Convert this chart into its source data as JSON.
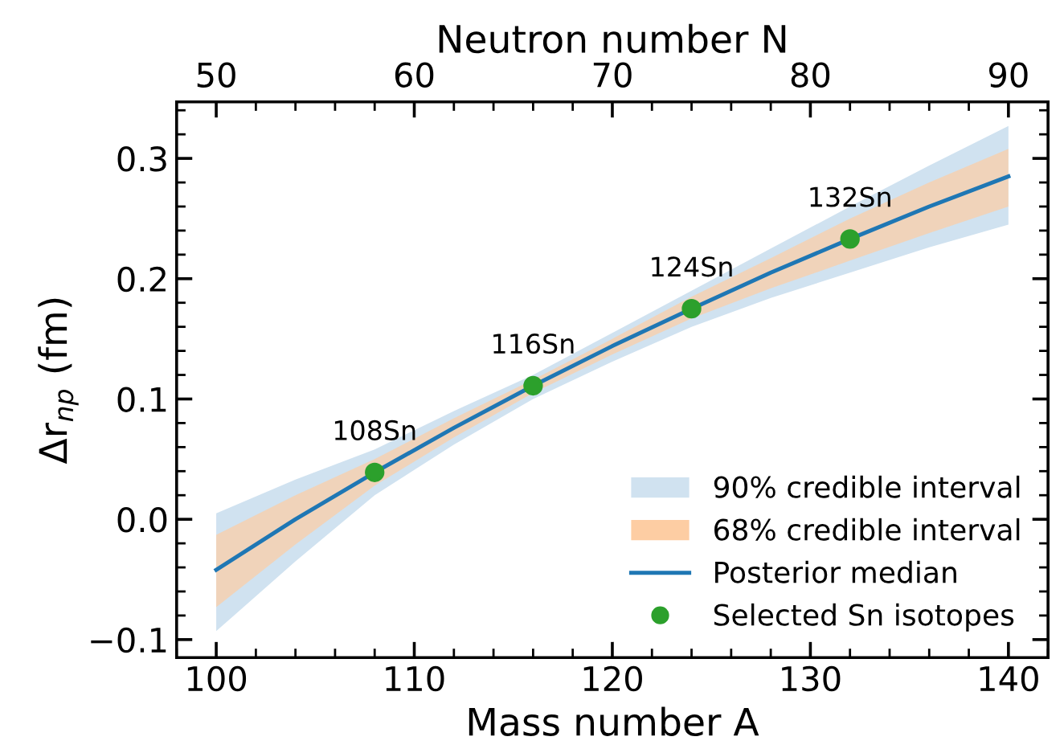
{
  "chart_data": {
    "type": "line",
    "xlabel": "Mass number A",
    "ylabel": "Δr$_{np}$ (fm)",
    "x2label": "Neutron number N",
    "xlim": [
      98,
      142
    ],
    "xticks": [
      100,
      110,
      120,
      130,
      140
    ],
    "x2lim": [
      48,
      92
    ],
    "x2ticks": [
      50,
      60,
      70,
      80,
      90
    ],
    "ylim": [
      -0.115,
      0.347
    ],
    "yticks": [
      {
        "value": -0.1,
        "label": "−0.1"
      },
      {
        "value": 0.0,
        "label": "0.0"
      },
      {
        "value": 0.1,
        "label": "0.1"
      },
      {
        "value": 0.2,
        "label": "0.2"
      },
      {
        "value": 0.3,
        "label": "0.3"
      }
    ],
    "x": [
      100,
      104,
      108,
      112,
      116,
      120,
      124,
      128,
      132,
      136,
      140
    ],
    "series": [
      {
        "name": "90% credible interval",
        "color": "#d0e2f0",
        "values": [
          null,
          null,
          null,
          null,
          null,
          null,
          null,
          null,
          null,
          null,
          null
        ],
        "lower": [
          -0.093,
          -0.035,
          0.02,
          0.062,
          0.1,
          0.131,
          0.16,
          0.184,
          0.205,
          0.226,
          0.245
        ],
        "upper": [
          0.005,
          0.033,
          0.058,
          0.09,
          0.12,
          0.155,
          0.19,
          0.225,
          0.26,
          0.294,
          0.327
        ]
      },
      {
        "name": "68% credible interval",
        "color": "#fdcda3",
        "values": [
          null,
          null,
          null,
          null,
          null,
          null,
          null,
          null,
          null,
          null,
          null
        ],
        "lower": [
          -0.073,
          -0.021,
          0.028,
          0.068,
          0.105,
          0.137,
          0.167,
          0.192,
          0.215,
          0.238,
          0.26
        ],
        "upper": [
          -0.013,
          0.02,
          0.05,
          0.084,
          0.116,
          0.15,
          0.185,
          0.217,
          0.25,
          0.28,
          0.308
        ]
      },
      {
        "name": "Posterior median",
        "type": "line",
        "color": "#1f77b4",
        "values": [
          -0.042,
          0.0,
          0.039,
          0.076,
          0.111,
          0.144,
          0.175,
          0.205,
          0.233,
          0.26,
          0.285
        ]
      },
      {
        "name": "Selected Sn isotopes",
        "type": "scatter",
        "color": "#2ca02c",
        "marker": "circle",
        "x": [
          108,
          116,
          124,
          132
        ],
        "values": [
          0.039,
          0.111,
          0.175,
          0.233
        ]
      }
    ],
    "annotations": [
      {
        "text": "108Sn",
        "x": 108,
        "y": 0.039
      },
      {
        "text": "116Sn",
        "x": 116,
        "y": 0.111
      },
      {
        "text": "124Sn",
        "x": 124,
        "y": 0.175
      },
      {
        "text": "132Sn",
        "x": 132,
        "y": 0.233
      }
    ],
    "legend": "lower right",
    "grid": false
  }
}
